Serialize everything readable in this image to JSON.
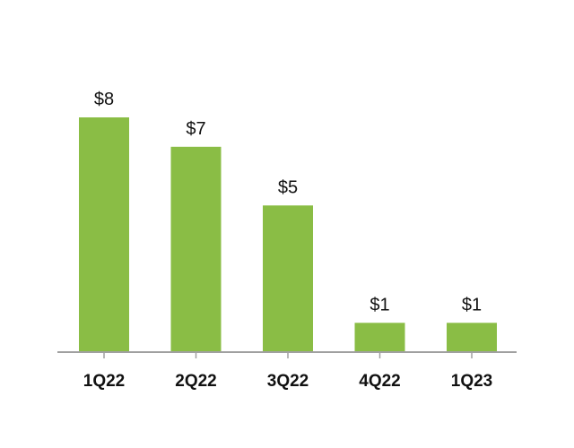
{
  "chart_data": {
    "type": "bar",
    "categories": [
      "1Q22",
      "2Q22",
      "3Q22",
      "4Q22",
      "1Q23"
    ],
    "values": [
      8,
      7,
      5,
      1,
      1
    ],
    "value_labels": [
      "$8",
      "$7",
      "$5",
      "$1",
      "$1"
    ],
    "ylim": [
      0,
      10
    ],
    "grid": false,
    "legend": "none",
    "colors": {
      "bar": "#8ABD45",
      "axis": "#A0A0A0"
    }
  }
}
